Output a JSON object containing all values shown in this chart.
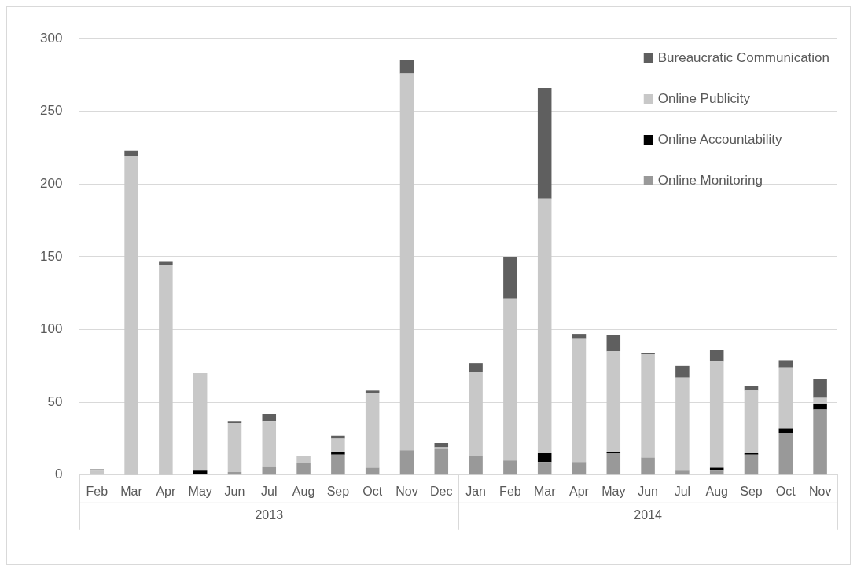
{
  "chart_data": {
    "type": "bar",
    "stacked": true,
    "categories": [
      "Feb",
      "Mar",
      "Apr",
      "May",
      "Jun",
      "Jul",
      "Aug",
      "Sep",
      "Oct",
      "Nov",
      "Dec",
      "Jan",
      "Feb",
      "Mar",
      "Apr",
      "May",
      "Jun",
      "Jul",
      "Aug",
      "Sep",
      "Oct",
      "Nov"
    ],
    "series": [
      {
        "name": "Online Monitoring",
        "color": "#999999",
        "values": [
          0,
          1,
          1,
          1,
          2,
          6,
          8,
          14,
          5,
          17,
          18,
          13,
          10,
          9,
          9,
          15,
          12,
          3,
          3,
          14,
          29,
          45
        ]
      },
      {
        "name": "Online Accountability",
        "color": "#000000",
        "values": [
          0,
          0,
          0,
          2,
          0,
          0,
          0,
          2,
          0,
          0,
          0,
          0,
          0,
          6,
          0,
          1,
          0,
          0,
          2,
          1,
          3,
          4
        ]
      },
      {
        "name": "Online Publicity",
        "color": "#c8c8c8",
        "values": [
          3,
          218,
          143,
          67,
          34,
          31,
          5,
          9,
          51,
          259,
          1,
          58,
          111,
          175,
          85,
          69,
          71,
          64,
          73,
          43,
          42,
          4
        ]
      },
      {
        "name": "Bureaucratic Communication",
        "color": "#5f5f5f",
        "values": [
          1,
          4,
          3,
          0,
          1,
          5,
          0,
          2,
          2,
          9,
          3,
          6,
          29,
          76,
          3,
          11,
          1,
          8,
          8,
          3,
          5,
          13
        ]
      }
    ],
    "annotations": [
      "2013",
      "2014"
    ],
    "ylim": [
      0,
      300
    ],
    "yticks": [
      0,
      50,
      100,
      150,
      200,
      250,
      300
    ],
    "grid": "y",
    "legend": "top right"
  }
}
